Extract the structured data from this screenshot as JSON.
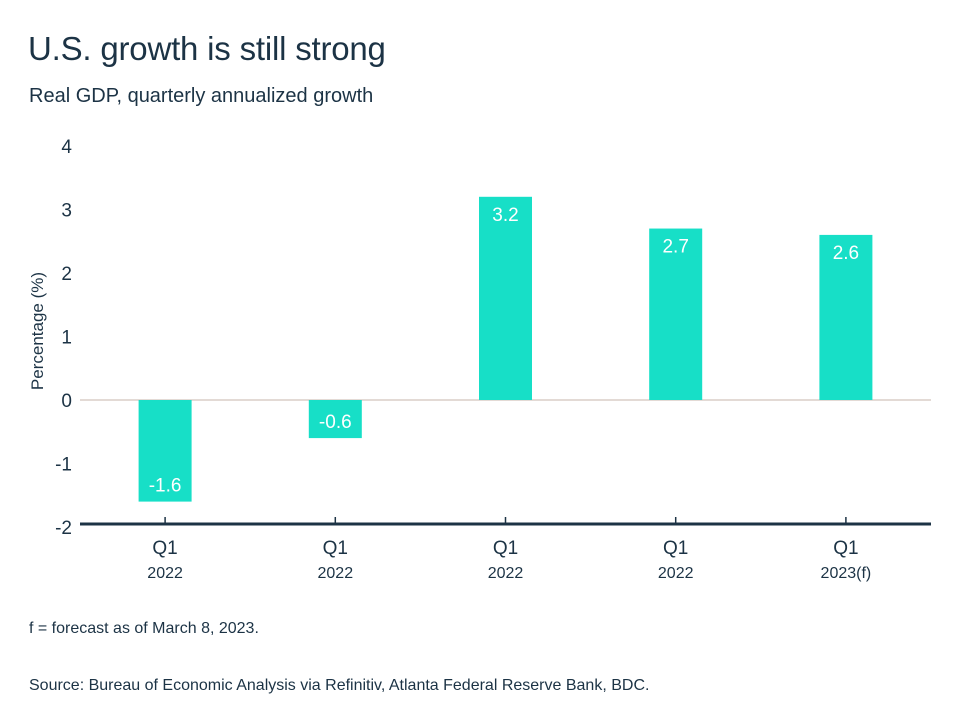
{
  "header": {
    "title": "U.S. growth is still strong",
    "subtitle": "Real GDP, quarterly annualized growth"
  },
  "colors": {
    "bar": "#17dfc7",
    "text": "#1c3345",
    "zero_line": "#e3dad5",
    "axis": "#1c3345"
  },
  "chart_data": {
    "type": "bar",
    "title": "U.S. growth is still strong",
    "subtitle": "Real GDP, quarterly annualized growth",
    "xlabel": "",
    "ylabel": "Percentage (%)",
    "ylim": [
      -2,
      4
    ],
    "yticks": [
      4,
      3,
      2,
      1,
      0,
      -1,
      -2
    ],
    "grid": false,
    "legend": "none",
    "categories": [
      {
        "quarter": "Q1",
        "year": "2022"
      },
      {
        "quarter": "Q1",
        "year": "2022"
      },
      {
        "quarter": "Q1",
        "year": "2022"
      },
      {
        "quarter": "Q1",
        "year": "2022"
      },
      {
        "quarter": "Q1",
        "year": "2023(f)"
      }
    ],
    "values": [
      -1.6,
      -0.6,
      3.2,
      2.7,
      2.6
    ],
    "data_labels": [
      "-1.6",
      "-0.6",
      "3.2",
      "2.7",
      "2.6"
    ]
  },
  "footer": {
    "note": "f = forecast as of March 8, 2023.",
    "source": "Source: Bureau of Economic Analysis via Refinitiv, Atlanta Federal Reserve Bank, BDC."
  }
}
